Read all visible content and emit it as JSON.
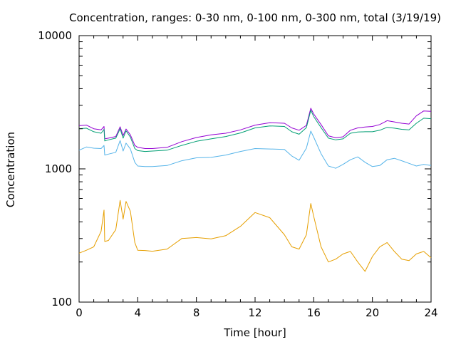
{
  "chart_data": {
    "type": "line",
    "title": "Concentration, ranges: 0-30 nm, 0-100 nm, 0-300 nm, total (3/19/19)",
    "xlabel": "Time [hour]",
    "ylabel": "Concentration",
    "xlim": [
      0,
      24
    ],
    "ylim": [
      100,
      10000
    ],
    "yscale": "log",
    "grid": false,
    "legend": "none",
    "xticks": [
      "0",
      "4",
      "8",
      "12",
      "16",
      "20",
      "24"
    ],
    "yticks": [
      "100",
      "1000",
      "10000"
    ],
    "x": [
      0,
      0.5,
      1,
      1.5,
      1.7,
      1.75,
      2,
      2.5,
      2.8,
      3,
      3.2,
      3.5,
      3.8,
      4,
      4.5,
      5,
      6,
      7,
      8,
      9,
      10,
      11,
      12,
      13,
      14,
      14.5,
      15,
      15.5,
      15.8,
      16,
      16.5,
      17,
      17.5,
      18,
      18.5,
      19,
      19.5,
      20,
      20.5,
      21,
      21.5,
      22,
      22.5,
      23,
      23.5,
      24
    ],
    "series": [
      {
        "color": "#9400d3",
        "values": [
          2110,
          2130,
          2000,
          1960,
          2080,
          1680,
          1700,
          1750,
          2070,
          1780,
          1990,
          1800,
          1500,
          1450,
          1420,
          1420,
          1450,
          1600,
          1720,
          1800,
          1850,
          1960,
          2130,
          2220,
          2200,
          2030,
          1950,
          2120,
          2850,
          2580,
          2150,
          1770,
          1710,
          1740,
          1950,
          2030,
          2060,
          2080,
          2150,
          2300,
          2250,
          2200,
          2170,
          2500,
          2720,
          2700
        ]
      },
      {
        "color": "#009e73",
        "values": [
          2000,
          2020,
          1900,
          1850,
          1980,
          1620,
          1650,
          1700,
          2000,
          1700,
          1930,
          1730,
          1420,
          1370,
          1350,
          1360,
          1380,
          1500,
          1610,
          1680,
          1750,
          1860,
          2030,
          2100,
          2080,
          1900,
          1820,
          2040,
          2750,
          2470,
          2040,
          1700,
          1650,
          1680,
          1850,
          1890,
          1900,
          1900,
          1950,
          2050,
          2020,
          1980,
          1960,
          2200,
          2400,
          2380
        ]
      },
      {
        "color": "#56b4e9",
        "values": [
          1380,
          1460,
          1430,
          1420,
          1500,
          1270,
          1290,
          1330,
          1630,
          1360,
          1560,
          1410,
          1120,
          1050,
          1040,
          1040,
          1060,
          1150,
          1210,
          1220,
          1270,
          1350,
          1420,
          1410,
          1400,
          1250,
          1160,
          1430,
          1920,
          1730,
          1300,
          1050,
          1010,
          1080,
          1170,
          1230,
          1120,
          1040,
          1060,
          1170,
          1200,
          1150,
          1100,
          1050,
          1080,
          1060
        ]
      },
      {
        "color": "#e69f00",
        "values": [
          233,
          245,
          260,
          340,
          490,
          285,
          290,
          350,
          580,
          420,
          570,
          480,
          280,
          245,
          244,
          241,
          250,
          300,
          305,
          298,
          315,
          370,
          470,
          430,
          320,
          260,
          250,
          320,
          550,
          440,
          260,
          200,
          210,
          230,
          240,
          200,
          170,
          220,
          260,
          280,
          240,
          210,
          205,
          230,
          240,
          215
        ]
      }
    ]
  }
}
